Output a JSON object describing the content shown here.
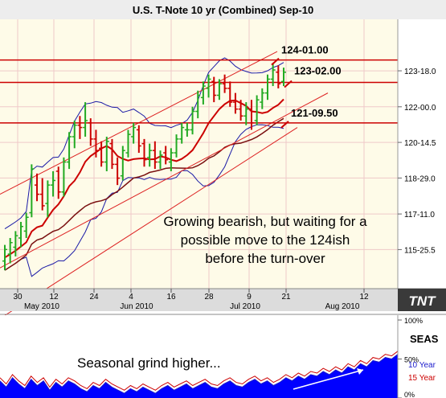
{
  "title": "U.S. T-Note 10 yr (Combined) Sep-10",
  "colors": {
    "plot_bg": "#fefbe8",
    "grid": "#efc9c9",
    "bull_bar": "#22aa22",
    "bear_bar": "#cc0000",
    "channel": "#dd2222",
    "level_line": "#cc0000",
    "band": "#1a1aa6",
    "ma": "#cc0000",
    "ma2": "#7a1010",
    "axis_strip": "#dcdcdc",
    "seas_fill": "#0000ff",
    "seas_10y": "#1a1acc",
    "seas_15y": "#cc0000"
  },
  "chart_data": [
    {
      "type": "candlestick",
      "title": "U.S. T-Note 10 yr (Combined) Sep-10",
      "y_axis": {
        "ticks": [
          "123-18.0",
          "122-00.0",
          "120-14.5",
          "118-29.0",
          "117-11.0",
          "115-25.5"
        ],
        "tick_values": [
          123.5625,
          122.0,
          120.453,
          118.906,
          117.344,
          115.797
        ],
        "range": [
          114.1,
          125.8
        ]
      },
      "x_axis": {
        "ticks": [
          "30",
          "12",
          "24",
          "4",
          "16",
          "28",
          "9",
          "21",
          "12"
        ],
        "months": [
          "May 2010",
          "Jun 2010",
          "Jul 2010",
          "Aug 2010"
        ]
      },
      "levels": [
        {
          "label": "124-01.00",
          "value": 124.03
        },
        {
          "label": "123-02.00",
          "value": 123.06
        },
        {
          "label": "121-09.50",
          "value": 121.3
        }
      ],
      "annotation": [
        "Growing bearish, but waiting for a",
        "possible move to the 124ish",
        "before the turn-over"
      ],
      "logo": "TNT",
      "bars": [
        {
          "o": 115.3,
          "h": 116.0,
          "l": 114.9,
          "c": 115.8
        },
        {
          "o": 115.6,
          "h": 116.3,
          "l": 115.2,
          "c": 116.1
        },
        {
          "o": 115.9,
          "h": 116.6,
          "l": 115.5,
          "c": 116.4
        },
        {
          "o": 116.3,
          "h": 117.0,
          "l": 115.9,
          "c": 116.8
        },
        {
          "o": 116.6,
          "h": 117.4,
          "l": 116.3,
          "c": 117.2
        },
        {
          "o": 117.4,
          "h": 119.5,
          "l": 117.2,
          "c": 119.3
        },
        {
          "o": 118.6,
          "h": 119.1,
          "l": 117.9,
          "c": 118.2
        },
        {
          "o": 118.2,
          "h": 118.9,
          "l": 117.5,
          "c": 117.7
        },
        {
          "o": 117.8,
          "h": 118.8,
          "l": 117.2,
          "c": 118.6
        },
        {
          "o": 118.6,
          "h": 119.2,
          "l": 118.1,
          "c": 118.8
        },
        {
          "o": 119.2,
          "h": 119.4,
          "l": 118.0,
          "c": 118.3
        },
        {
          "o": 118.3,
          "h": 119.8,
          "l": 118.1,
          "c": 119.6
        },
        {
          "o": 119.6,
          "h": 120.9,
          "l": 119.3,
          "c": 120.7
        },
        {
          "o": 120.7,
          "h": 121.4,
          "l": 120.2,
          "c": 121.2
        },
        {
          "o": 121.2,
          "h": 121.6,
          "l": 120.6,
          "c": 121.1
        },
        {
          "o": 121.1,
          "h": 122.2,
          "l": 120.7,
          "c": 121.4
        },
        {
          "o": 121.3,
          "h": 121.5,
          "l": 120.3,
          "c": 120.6
        },
        {
          "o": 120.6,
          "h": 121.0,
          "l": 119.8,
          "c": 120.1
        },
        {
          "o": 120.2,
          "h": 120.5,
          "l": 119.4,
          "c": 119.6
        },
        {
          "o": 119.6,
          "h": 120.7,
          "l": 119.2,
          "c": 120.5
        },
        {
          "o": 120.4,
          "h": 120.6,
          "l": 119.3,
          "c": 119.5
        },
        {
          "o": 119.5,
          "h": 119.8,
          "l": 118.6,
          "c": 118.9
        },
        {
          "o": 119.0,
          "h": 120.3,
          "l": 118.8,
          "c": 120.1
        },
        {
          "o": 120.0,
          "h": 121.0,
          "l": 119.8,
          "c": 120.8
        },
        {
          "o": 120.7,
          "h": 121.3,
          "l": 120.4,
          "c": 121.1
        },
        {
          "o": 121.0,
          "h": 121.2,
          "l": 120.0,
          "c": 120.3
        },
        {
          "o": 120.4,
          "h": 120.6,
          "l": 119.4,
          "c": 119.7
        },
        {
          "o": 119.8,
          "h": 120.4,
          "l": 119.4,
          "c": 120.1
        },
        {
          "o": 120.1,
          "h": 120.5,
          "l": 119.3,
          "c": 119.6
        },
        {
          "o": 119.6,
          "h": 120.1,
          "l": 119.3,
          "c": 119.9
        },
        {
          "o": 120.0,
          "h": 120.3,
          "l": 119.5,
          "c": 119.7
        },
        {
          "o": 119.6,
          "h": 120.2,
          "l": 119.2,
          "c": 120.0
        },
        {
          "o": 120.0,
          "h": 120.8,
          "l": 119.8,
          "c": 120.6
        },
        {
          "o": 120.6,
          "h": 121.3,
          "l": 120.4,
          "c": 121.1
        },
        {
          "o": 121.0,
          "h": 121.3,
          "l": 120.7,
          "c": 121.0
        },
        {
          "o": 121.0,
          "h": 122.0,
          "l": 120.8,
          "c": 121.8
        },
        {
          "o": 121.8,
          "h": 122.7,
          "l": 121.5,
          "c": 122.5
        },
        {
          "o": 122.4,
          "h": 123.1,
          "l": 122.1,
          "c": 122.9
        },
        {
          "o": 122.8,
          "h": 123.4,
          "l": 122.4,
          "c": 123.2
        },
        {
          "o": 123.1,
          "h": 123.3,
          "l": 122.2,
          "c": 122.5
        },
        {
          "o": 122.5,
          "h": 123.2,
          "l": 122.3,
          "c": 123.0
        },
        {
          "o": 123.0,
          "h": 123.4,
          "l": 122.6,
          "c": 122.8
        },
        {
          "o": 122.8,
          "h": 123.1,
          "l": 122.0,
          "c": 122.2
        },
        {
          "o": 122.2,
          "h": 122.6,
          "l": 121.7,
          "c": 121.9
        },
        {
          "o": 121.9,
          "h": 122.3,
          "l": 121.4,
          "c": 121.6
        },
        {
          "o": 121.6,
          "h": 122.2,
          "l": 121.2,
          "c": 121.9
        },
        {
          "o": 121.9,
          "h": 122.3,
          "l": 121.0,
          "c": 121.3
        },
        {
          "o": 121.4,
          "h": 122.5,
          "l": 121.2,
          "c": 122.3
        },
        {
          "o": 122.2,
          "h": 122.8,
          "l": 121.9,
          "c": 122.6
        },
        {
          "o": 122.6,
          "h": 123.4,
          "l": 122.3,
          "c": 123.2
        },
        {
          "o": 123.2,
          "h": 123.9,
          "l": 122.9,
          "c": 123.6
        },
        {
          "o": 123.5,
          "h": 123.8,
          "l": 122.8,
          "c": 123.0
        },
        {
          "o": 123.1,
          "h": 123.7,
          "l": 122.9,
          "c": 123.5
        }
      ]
    },
    {
      "type": "area",
      "title": "SEAS",
      "y_axis": {
        "ticks": [
          "100%",
          "50%",
          "0%"
        ],
        "range": [
          0,
          100
        ]
      },
      "legend": [
        "10 Year",
        "15 Year"
      ],
      "annotation": "Seasonal grind higher...",
      "series": [
        {
          "name": "10 Year",
          "values": [
            22,
            14,
            26,
            18,
            12,
            24,
            16,
            22,
            10,
            20,
            14,
            22,
            18,
            12,
            8,
            16,
            12,
            20,
            14,
            10,
            6,
            12,
            8,
            14,
            10,
            6,
            12,
            16,
            10,
            14,
            18,
            12,
            16,
            20,
            14,
            12,
            18,
            22,
            16,
            14,
            20,
            24,
            18,
            22,
            16,
            20,
            26,
            22,
            28,
            24,
            30,
            28,
            34,
            30,
            36,
            32,
            40,
            36,
            44,
            40,
            48,
            46,
            52,
            50,
            56
          ]
        },
        {
          "name": "15 Year",
          "values": [
            26,
            18,
            30,
            22,
            16,
            28,
            20,
            26,
            14,
            24,
            18,
            26,
            22,
            16,
            12,
            20,
            16,
            24,
            18,
            14,
            10,
            16,
            12,
            18,
            14,
            10,
            16,
            20,
            14,
            18,
            22,
            16,
            20,
            24,
            18,
            16,
            22,
            26,
            20,
            18,
            24,
            28,
            22,
            26,
            20,
            24,
            30,
            26,
            32,
            28,
            34,
            32,
            38,
            34,
            40,
            36,
            44,
            40,
            48,
            44,
            52,
            50,
            56,
            54,
            60
          ]
        }
      ]
    }
  ]
}
